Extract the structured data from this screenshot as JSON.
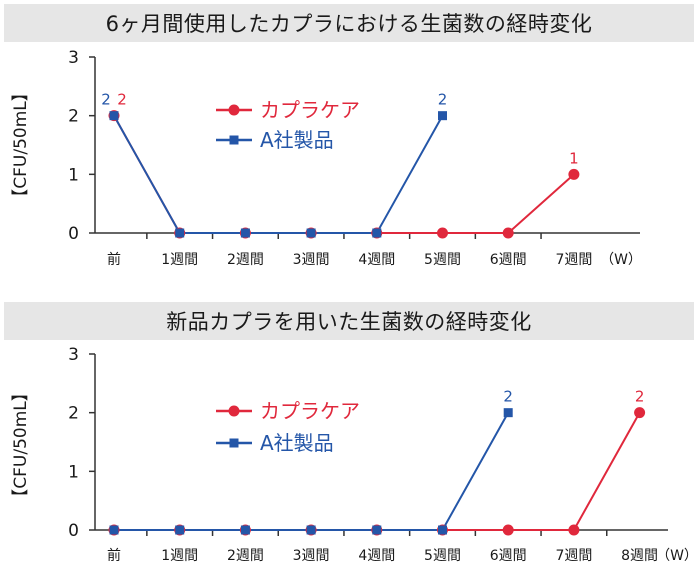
{
  "chart_data": [
    {
      "type": "line",
      "title": "6ヶ月間使用したカプラにおける生菌数の経時変化",
      "ylabel": "【CFU/50mL】",
      "ylim": [
        0,
        3
      ],
      "yticks": [
        "0",
        "1",
        "2",
        "3"
      ],
      "categories": [
        "前",
        "1週間",
        "2週間",
        "3週間",
        "4週間",
        "5週間",
        "6週間",
        "7週間"
      ],
      "x_unit": "（W）",
      "legend_position": "top-center",
      "series": [
        {
          "name": "カプラケア",
          "color": "#e0283c",
          "marker": "circle",
          "values": [
            2,
            0,
            0,
            0,
            0,
            0,
            0,
            1
          ],
          "labels": [
            "2",
            "",
            "",
            "",
            "",
            "",
            "",
            "1"
          ]
        },
        {
          "name": "A社製品",
          "color": "#2456a8",
          "marker": "square",
          "values": [
            2,
            0,
            0,
            0,
            0,
            2,
            null,
            null
          ],
          "labels": [
            "2",
            "",
            "",
            "",
            "",
            "2",
            "",
            ""
          ]
        }
      ]
    },
    {
      "type": "line",
      "title": "新品カプラを用いた生菌数の経時変化",
      "ylabel": "【CFU/50mL】",
      "ylim": [
        0,
        3
      ],
      "yticks": [
        "0",
        "1",
        "2",
        "3"
      ],
      "categories": [
        "前",
        "1週間",
        "2週間",
        "3週間",
        "4週間",
        "5週間",
        "6週間",
        "7週間",
        "8週間"
      ],
      "x_unit": "（W）",
      "legend_position": "center",
      "series": [
        {
          "name": "カプラケア",
          "color": "#e0283c",
          "marker": "circle",
          "values": [
            0,
            0,
            0,
            0,
            0,
            0,
            0,
            0,
            2
          ],
          "labels": [
            "",
            "",
            "",
            "",
            "",
            "",
            "",
            "",
            "2"
          ]
        },
        {
          "name": "A社製品",
          "color": "#2456a8",
          "marker": "square",
          "values": [
            0,
            0,
            0,
            0,
            0,
            0,
            2,
            null,
            null
          ],
          "labels": [
            "",
            "",
            "",
            "",
            "",
            "",
            "2",
            "",
            ""
          ]
        }
      ]
    }
  ]
}
